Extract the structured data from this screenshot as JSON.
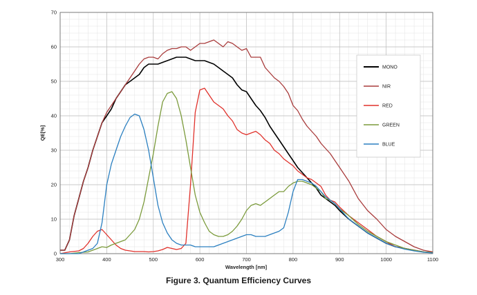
{
  "caption": "Figure 3. Quantum Efficiency Curves",
  "chart_data": {
    "type": "line",
    "title": "",
    "xlabel": "Wavelength [nm]",
    "ylabel": "QE[%]",
    "xlim": [
      300,
      1100
    ],
    "ylim": [
      0,
      70
    ],
    "xticks": [
      300,
      400,
      500,
      600,
      700,
      800,
      900,
      1000,
      1100
    ],
    "yticks": [
      0,
      10,
      20,
      30,
      40,
      50,
      60,
      70
    ],
    "grid": true,
    "legend_placement": "right",
    "series": [
      {
        "name": "MONO",
        "color": "#000000",
        "x": [
          300,
          310,
          320,
          330,
          340,
          350,
          360,
          370,
          380,
          390,
          400,
          410,
          420,
          430,
          440,
          450,
          460,
          470,
          480,
          490,
          500,
          510,
          520,
          530,
          540,
          550,
          560,
          570,
          580,
          590,
          600,
          610,
          620,
          630,
          640,
          650,
          660,
          670,
          680,
          690,
          700,
          710,
          720,
          730,
          740,
          750,
          760,
          770,
          780,
          790,
          800,
          810,
          820,
          830,
          840,
          850,
          860,
          870,
          880,
          890,
          900,
          920,
          940,
          960,
          980,
          1000,
          1020,
          1040,
          1060,
          1080,
          1100
        ],
        "y": [
          1,
          1,
          4,
          11,
          16,
          21,
          25,
          30,
          34,
          38,
          40,
          42,
          45,
          47,
          49,
          50,
          51,
          52,
          54,
          55,
          55,
          55,
          55.5,
          56,
          56.5,
          57,
          57,
          57,
          56.5,
          56,
          56,
          56,
          55.5,
          55,
          54,
          53,
          52,
          51,
          49,
          47.5,
          47,
          45,
          43,
          41.5,
          39.5,
          37,
          35,
          33,
          31,
          29,
          27,
          25,
          23.5,
          22,
          20.5,
          19,
          17,
          16,
          15,
          14,
          12.5,
          10,
          8,
          6,
          4.5,
          3,
          2,
          1.5,
          1,
          0.5,
          0.3
        ]
      },
      {
        "name": "NIR",
        "color": "#a83a3a",
        "x": [
          300,
          310,
          320,
          330,
          340,
          350,
          360,
          370,
          380,
          390,
          400,
          410,
          420,
          430,
          440,
          450,
          460,
          470,
          480,
          490,
          500,
          510,
          520,
          530,
          540,
          550,
          560,
          570,
          580,
          590,
          600,
          610,
          620,
          630,
          640,
          650,
          660,
          670,
          680,
          690,
          700,
          710,
          720,
          730,
          740,
          750,
          760,
          770,
          780,
          790,
          800,
          810,
          820,
          830,
          840,
          850,
          860,
          870,
          880,
          890,
          900,
          920,
          940,
          960,
          980,
          1000,
          1020,
          1040,
          1060,
          1080,
          1100
        ],
        "y": [
          1,
          1,
          4,
          11,
          16,
          21,
          25,
          30,
          34,
          38,
          41,
          43,
          45,
          47,
          49,
          51,
          53,
          55,
          56.5,
          57,
          57,
          56.5,
          58,
          59,
          59.5,
          59.5,
          60,
          60,
          59,
          60,
          61,
          61,
          61.5,
          62,
          61,
          60,
          61.5,
          61,
          60,
          59,
          59.5,
          57,
          57,
          57,
          54,
          52.5,
          51,
          50,
          48.5,
          46.5,
          43,
          41.5,
          39,
          37,
          35.5,
          34,
          32,
          30.5,
          29,
          27,
          25,
          21,
          16,
          12.5,
          10,
          7,
          5,
          3.5,
          2,
          1,
          0.5
        ]
      },
      {
        "name": "RED",
        "color": "#e0302a",
        "x": [
          300,
          320,
          340,
          350,
          360,
          370,
          380,
          390,
          400,
          410,
          420,
          430,
          440,
          450,
          460,
          470,
          480,
          490,
          500,
          510,
          520,
          530,
          540,
          550,
          560,
          570,
          580,
          590,
          600,
          610,
          620,
          630,
          640,
          650,
          660,
          670,
          680,
          690,
          700,
          710,
          720,
          730,
          740,
          750,
          760,
          770,
          780,
          790,
          800,
          810,
          820,
          830,
          840,
          850,
          860,
          870,
          880,
          890,
          900,
          920,
          940,
          960,
          980,
          1000,
          1020,
          1040,
          1060,
          1080,
          1100
        ],
        "y": [
          0,
          0.5,
          0.8,
          1.5,
          3,
          5,
          6.5,
          7,
          5.5,
          4,
          2.5,
          1.5,
          1,
          0.8,
          0.6,
          0.6,
          0.6,
          0.5,
          0.6,
          0.8,
          1.2,
          1.8,
          1.5,
          1.2,
          1.5,
          3,
          20,
          41,
          47.5,
          48,
          46,
          44,
          43,
          42,
          40,
          38.5,
          36,
          35,
          34.5,
          35,
          35.5,
          34.5,
          33,
          32,
          30,
          29,
          27.5,
          26.5,
          25.5,
          24,
          23,
          22,
          21.5,
          20.5,
          19.5,
          17,
          15.5,
          15,
          13.5,
          11,
          9,
          7,
          5,
          3.5,
          2,
          1.5,
          1,
          0.5,
          0.3
        ]
      },
      {
        "name": "GREEN",
        "color": "#7a9a3a",
        "x": [
          300,
          320,
          340,
          360,
          370,
          380,
          390,
          400,
          410,
          420,
          430,
          440,
          450,
          460,
          470,
          480,
          490,
          500,
          510,
          520,
          530,
          540,
          550,
          560,
          570,
          580,
          590,
          600,
          610,
          620,
          630,
          640,
          650,
          660,
          670,
          680,
          690,
          700,
          710,
          720,
          730,
          740,
          750,
          760,
          770,
          780,
          790,
          800,
          810,
          820,
          830,
          840,
          850,
          860,
          870,
          880,
          890,
          900,
          920,
          940,
          960,
          980,
          1000,
          1020,
          1040,
          1060,
          1080,
          1100
        ],
        "y": [
          0,
          0,
          0.3,
          0.5,
          1,
          1.5,
          2,
          1.8,
          2.5,
          3,
          3.5,
          4,
          5.5,
          7,
          10,
          15,
          22,
          29,
          37,
          44,
          46.5,
          47,
          45,
          40,
          33,
          25,
          17,
          12,
          9,
          6.5,
          5.5,
          5,
          5,
          5.5,
          6.5,
          8,
          10,
          12.5,
          14,
          14.5,
          14,
          15,
          16,
          17,
          18,
          18,
          19.5,
          20.5,
          21,
          21,
          20.5,
          20,
          19,
          18,
          16,
          15.5,
          14.5,
          13,
          11,
          8.5,
          6.5,
          5,
          3.5,
          2.5,
          1.5,
          1,
          0.5,
          0.3
        ]
      },
      {
        "name": "BLUE",
        "color": "#2a7fc0",
        "x": [
          300,
          320,
          340,
          350,
          360,
          370,
          380,
          390,
          400,
          410,
          420,
          430,
          440,
          450,
          460,
          470,
          480,
          490,
          500,
          510,
          520,
          530,
          540,
          550,
          560,
          570,
          580,
          590,
          600,
          610,
          620,
          630,
          640,
          650,
          660,
          670,
          680,
          690,
          700,
          710,
          720,
          730,
          740,
          750,
          760,
          770,
          780,
          790,
          800,
          810,
          820,
          830,
          840,
          850,
          860,
          870,
          880,
          890,
          900,
          920,
          940,
          960,
          980,
          1000,
          1020,
          1040,
          1060,
          1080,
          1100
        ],
        "y": [
          0,
          0,
          0,
          0.5,
          1,
          1.5,
          3,
          9,
          20,
          26,
          30,
          34,
          37,
          39.5,
          40.5,
          40,
          36,
          30,
          22,
          14,
          9,
          6,
          4,
          3,
          2.5,
          2.5,
          2.5,
          2,
          2,
          2,
          2,
          2,
          2.5,
          3,
          3.5,
          4,
          4.5,
          5,
          5.5,
          5.5,
          5,
          5,
          5,
          5.5,
          6,
          6.5,
          7.5,
          12,
          18,
          21.5,
          21.5,
          21,
          20.5,
          19.5,
          18,
          16.5,
          15.5,
          14.5,
          13,
          10,
          8,
          6,
          4.5,
          3,
          2,
          1.3,
          0.8,
          0.4,
          0.2
        ]
      }
    ]
  }
}
